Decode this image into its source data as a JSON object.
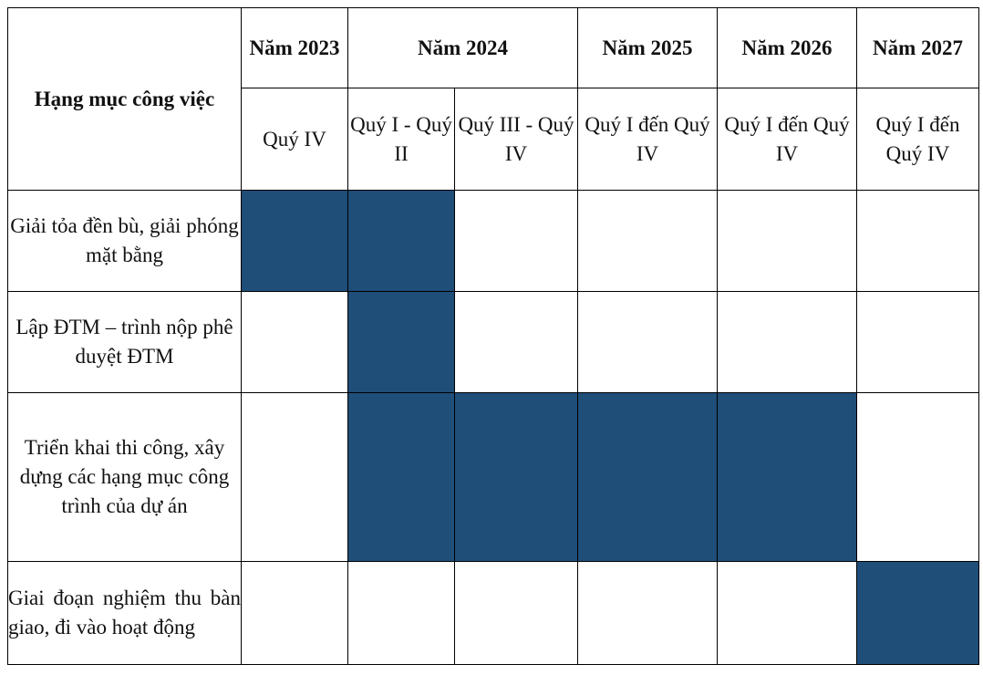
{
  "header": {
    "item_label": "Hạng mục công việc",
    "years": [
      "Năm 2023",
      "Năm 2024",
      "Năm 2025",
      "Năm 2026",
      "Năm 2027"
    ],
    "quarters": [
      "Quý IV",
      "Quý I - Quý II",
      "Quý III - Quý IV",
      "Quý I đến Quý IV",
      "Quý I đến Quý IV",
      "Quý I đến Quý IV"
    ]
  },
  "tasks": [
    {
      "label": "Giải tỏa đền bù, giải phóng mặt bằng",
      "active": [
        true,
        true,
        false,
        false,
        false,
        false
      ]
    },
    {
      "label": "Lập ĐTM – trình nộp phê duyệt ĐTM",
      "active": [
        false,
        true,
        false,
        false,
        false,
        false
      ]
    },
    {
      "label": "Triển khai thi công, xây dựng các hạng mục công trình của dự án",
      "active": [
        false,
        true,
        true,
        true,
        true,
        false
      ]
    },
    {
      "label": "Giai đoạn nghiệm thu bàn giao, đi vào hoạt động",
      "active": [
        false,
        false,
        false,
        false,
        false,
        true
      ]
    }
  ],
  "colors": {
    "bar_fill": "#1f4e79",
    "grid_line": "#000000"
  }
}
